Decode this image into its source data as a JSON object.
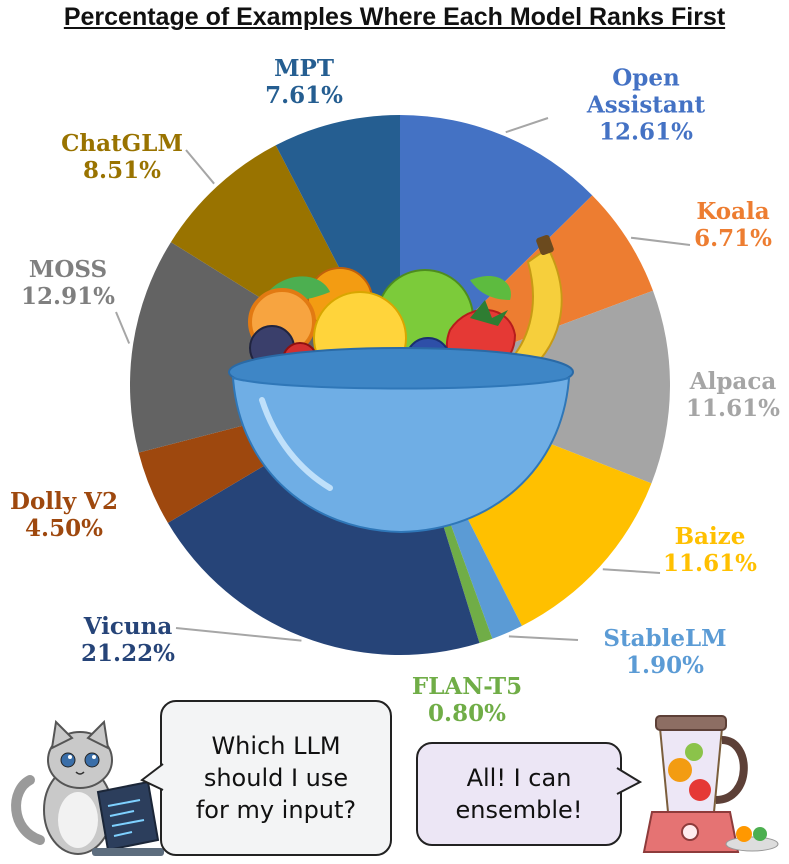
{
  "chart_data": {
    "type": "pie",
    "title": "Percentage of Examples Where Each Model Ranks First",
    "unit": "%",
    "slices": [
      {
        "label": [
          "Open",
          "Assistant"
        ],
        "value": 12.61,
        "value_text": "12.61%",
        "color": "#4472C4",
        "label_color": "#4472C4"
      },
      {
        "label": [
          "Koala"
        ],
        "value": 6.71,
        "value_text": "6.71%",
        "color": "#ED7D31",
        "label_color": "#ED7D31"
      },
      {
        "label": [
          "Alpaca"
        ],
        "value": 11.61,
        "value_text": "11.61%",
        "color": "#A5A5A5",
        "label_color": "#A5A5A5"
      },
      {
        "label": [
          "Baize"
        ],
        "value": 11.61,
        "value_text": "11.61%",
        "color": "#FFC000",
        "label_color": "#FFC000"
      },
      {
        "label": [
          "StableLM"
        ],
        "value": 1.9,
        "value_text": "1.90%",
        "color": "#5B9BD5",
        "label_color": "#5B9BD5"
      },
      {
        "label": [
          "FLAN-T5"
        ],
        "value": 0.8,
        "value_text": "0.80%",
        "color": "#70AD47",
        "label_color": "#70AD47"
      },
      {
        "label": [
          "Vicuna"
        ],
        "value": 21.22,
        "value_text": "21.22%",
        "color": "#264478",
        "label_color": "#264478"
      },
      {
        "label": [
          "Dolly V2"
        ],
        "value": 4.5,
        "value_text": "4.50%",
        "color": "#9E480E",
        "label_color": "#9E480E"
      },
      {
        "label": [
          "MOSS"
        ],
        "value": 12.91,
        "value_text": "12.91%",
        "color": "#636363",
        "label_color": "#7F7F7F"
      },
      {
        "label": [
          "ChatGLM"
        ],
        "value": 8.51,
        "value_text": "8.51%",
        "color": "#997300",
        "label_color": "#997300"
      },
      {
        "label": [
          "MPT"
        ],
        "value": 7.61,
        "value_text": "7.61%",
        "color": "#255E91",
        "label_color": "#255E91"
      }
    ]
  },
  "bubbles": {
    "user_lines": [
      "Which LLM",
      "should I use",
      "for my input?"
    ],
    "blender_lines": [
      "All! I can",
      "ensemble!"
    ]
  }
}
